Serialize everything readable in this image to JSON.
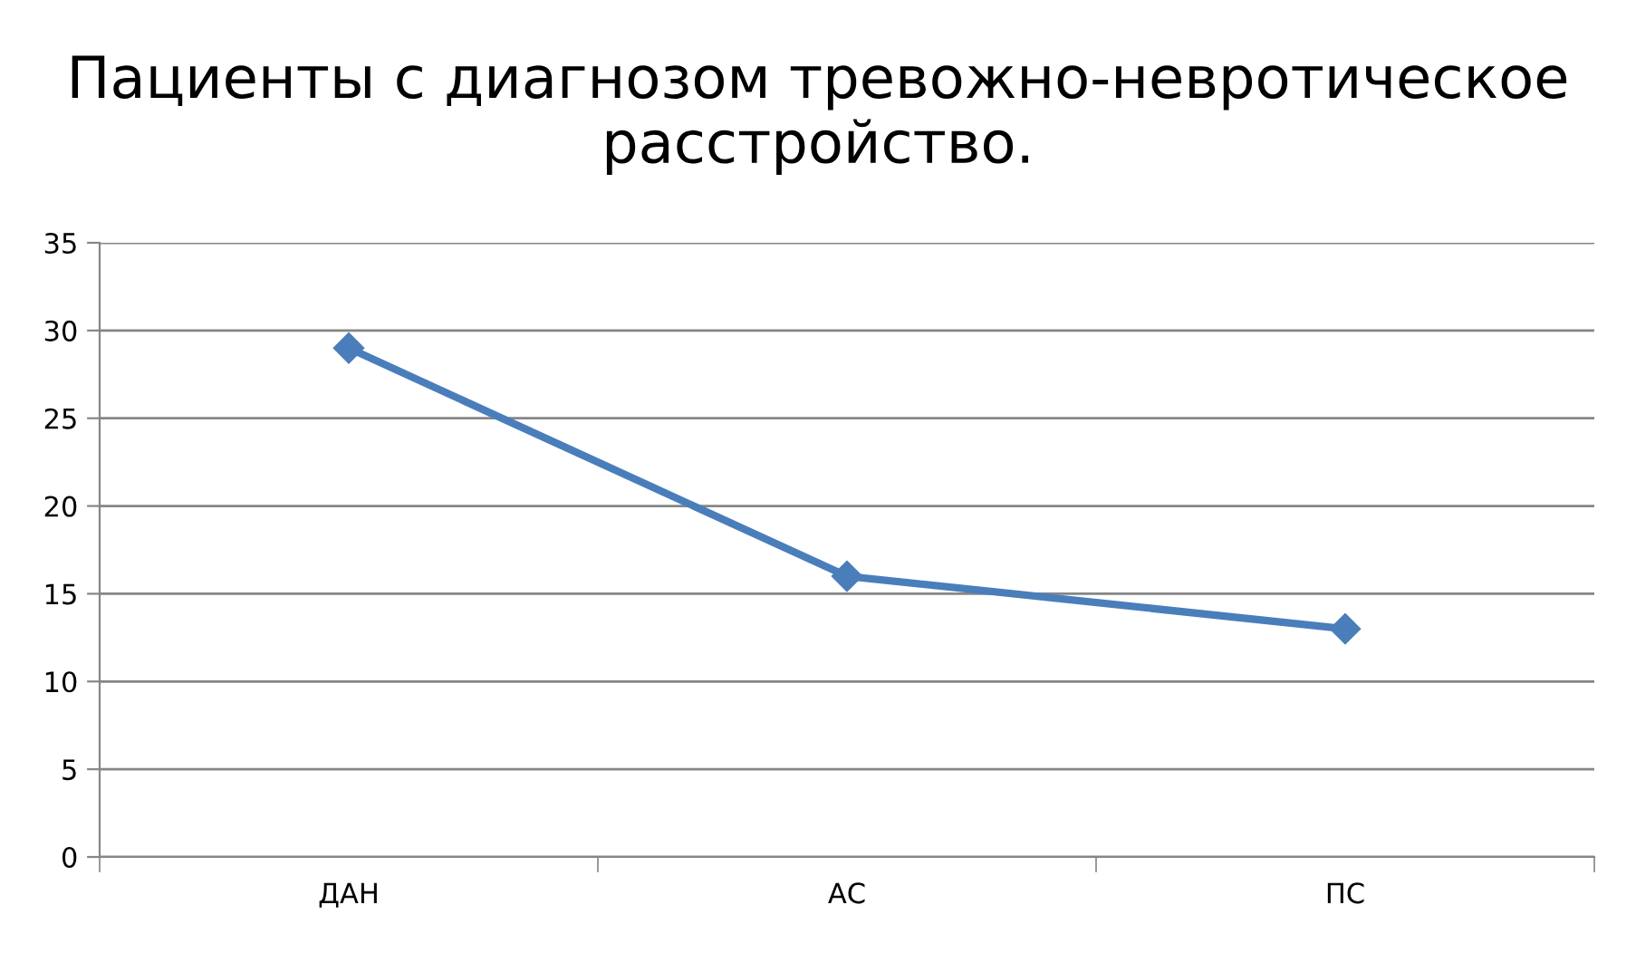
{
  "chart_data": {
    "type": "line",
    "title": "Пациенты с диагнозом тревожно-невротическое расстройство.",
    "categories": [
      "ДАН",
      "АС",
      "ПС"
    ],
    "series": [
      {
        "color": "#4a7ebb",
        "values": [
          29,
          16,
          13
        ]
      }
    ],
    "ylim": [
      0,
      35
    ],
    "yticks": [
      0,
      5,
      10,
      15,
      20,
      25,
      30,
      35
    ],
    "grid": "y",
    "marker": "diamond",
    "line_style": "solid"
  }
}
